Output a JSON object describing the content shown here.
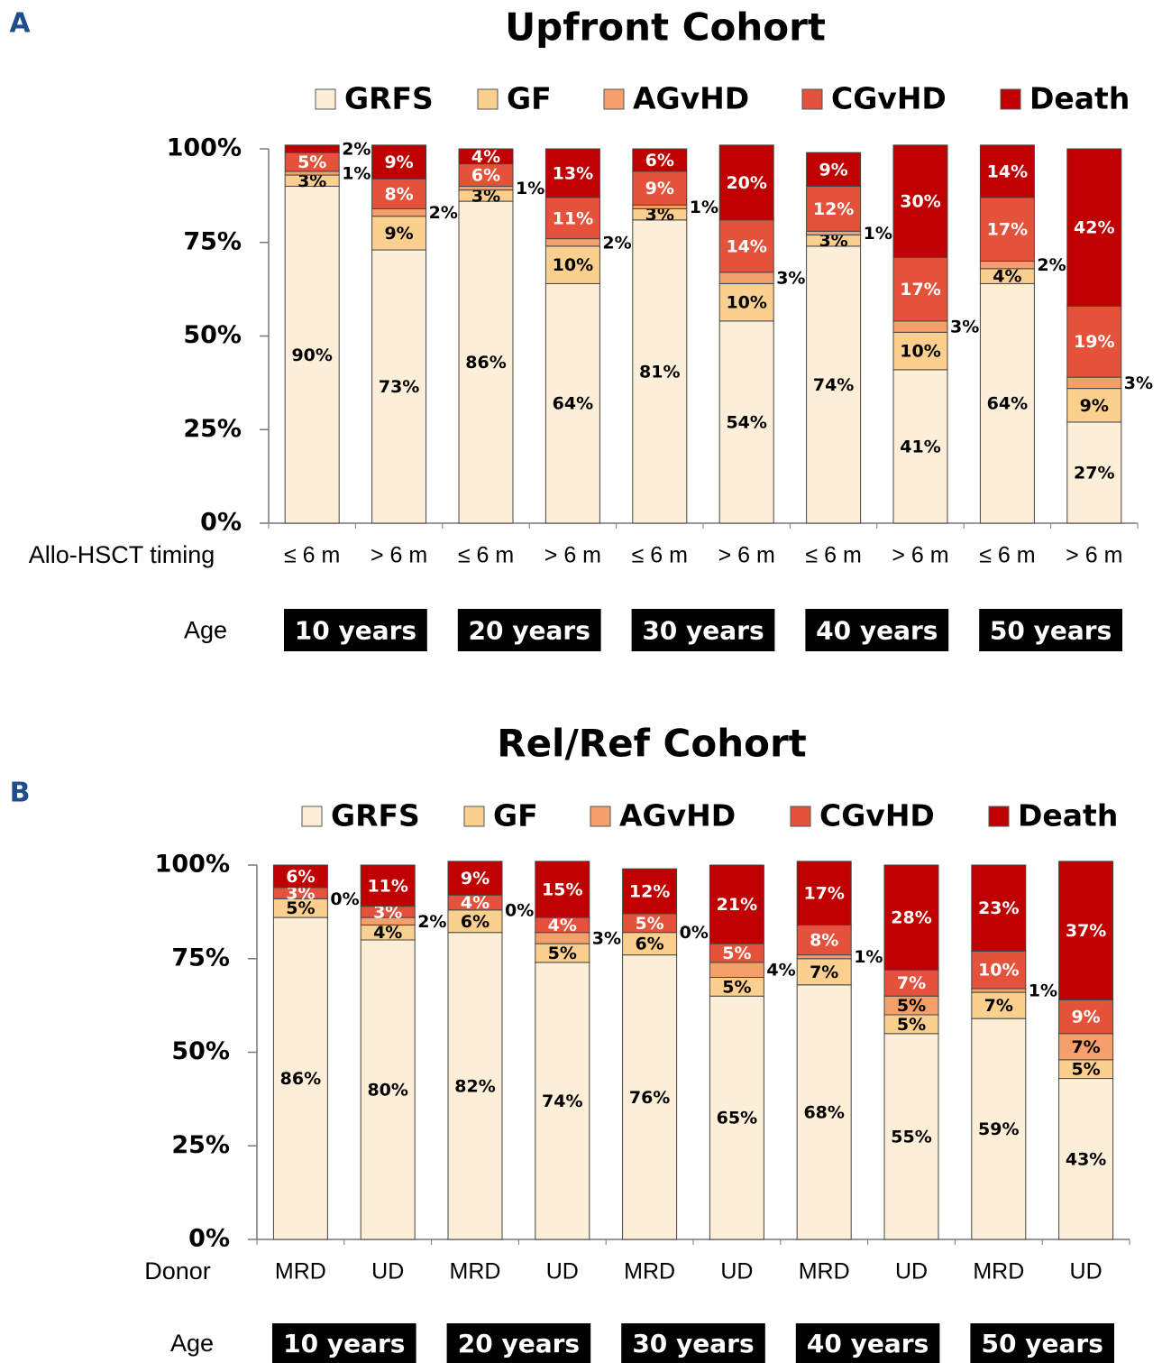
{
  "chart_data": [
    {
      "type": "bar",
      "stacked": true,
      "panel": "A",
      "title": "Upfront Cohort",
      "x_label": "Allo-HSCT timing",
      "categories": [
        "≤ 6 m",
        "> 6 m",
        "≤ 6 m",
        "> 6 m",
        "≤ 6 m",
        "> 6 m",
        "≤ 6 m",
        "> 6 m",
        "≤ 6 m",
        "> 6 m"
      ],
      "groups": {
        "label": "Age",
        "names": [
          "10 years",
          "20 years",
          "30 years",
          "40 years",
          "50 years"
        ]
      },
      "ylim": [
        0,
        100
      ],
      "yticks": [
        {
          "value": 0,
          "label": "0%"
        },
        {
          "value": 25,
          "label": "25%"
        },
        {
          "value": 50,
          "label": "50%"
        },
        {
          "value": 75,
          "label": "75%"
        },
        {
          "value": 100,
          "label": "100%"
        }
      ],
      "series": [
        {
          "name": "GRFS",
          "color": "#fdeed8",
          "values": [
            90,
            73,
            86,
            64,
            81,
            54,
            74,
            41,
            64,
            27
          ],
          "value_labels": [
            "90%",
            "73%",
            "86%",
            "64%",
            "81%",
            "54%",
            "74%",
            "41%",
            "64%",
            "27%"
          ]
        },
        {
          "name": "GF",
          "color": "#fbd08f",
          "values": [
            3,
            9,
            3,
            10,
            3,
            10,
            3,
            10,
            4,
            9
          ],
          "value_labels": [
            "3%",
            "9%",
            "3%",
            "10%",
            "3%",
            "10%",
            "3%",
            "10%",
            "4%",
            "9%"
          ]
        },
        {
          "name": "AGvHD",
          "color": "#f5a06a",
          "values": [
            1,
            2,
            1,
            2,
            1,
            3,
            1,
            3,
            2,
            3
          ],
          "value_labels": [
            "1%",
            "2%",
            "1%",
            "2%",
            "1%",
            "3%",
            "1%",
            "3%",
            "2%",
            "3%"
          ]
        },
        {
          "name": "CGvHD",
          "color": "#e4523b",
          "values": [
            5,
            8,
            6,
            11,
            9,
            14,
            12,
            17,
            17,
            19
          ],
          "value_labels": [
            "5%",
            "8%",
            "6%",
            "11%",
            "9%",
            "14%",
            "12%",
            "17%",
            "17%",
            "19%"
          ]
        },
        {
          "name": "Death",
          "color": "#c00000",
          "values": [
            2,
            9,
            4,
            13,
            6,
            20,
            9,
            30,
            14,
            42
          ],
          "value_labels": [
            "2%",
            "9%",
            "4%",
            "13%",
            "6%",
            "20%",
            "9%",
            "30%",
            "14%",
            "42%"
          ]
        }
      ]
    },
    {
      "type": "bar",
      "stacked": true,
      "panel": "B",
      "title": "Rel/Ref Cohort",
      "x_label": "Donor",
      "categories": [
        "MRD",
        "UD",
        "MRD",
        "UD",
        "MRD",
        "UD",
        "MRD",
        "UD",
        "MRD",
        "UD"
      ],
      "groups": {
        "label": "Age",
        "names": [
          "10 years",
          "20 years",
          "30 years",
          "40 years",
          "50 years"
        ]
      },
      "ylim": [
        0,
        100
      ],
      "yticks": [
        {
          "value": 0,
          "label": "0%"
        },
        {
          "value": 25,
          "label": "25%"
        },
        {
          "value": 50,
          "label": "50%"
        },
        {
          "value": 75,
          "label": "75%"
        },
        {
          "value": 100,
          "label": "100%"
        }
      ],
      "series": [
        {
          "name": "GRFS",
          "color": "#fdeed8",
          "values": [
            86,
            80,
            82,
            74,
            76,
            65,
            68,
            55,
            59,
            43
          ],
          "value_labels": [
            "86%",
            "80%",
            "82%",
            "74%",
            "76%",
            "65%",
            "68%",
            "55%",
            "59%",
            "43%"
          ]
        },
        {
          "name": "GF",
          "color": "#fbd08f",
          "values": [
            5,
            4,
            6,
            5,
            6,
            5,
            7,
            5,
            7,
            5
          ],
          "value_labels": [
            "5%",
            "4%",
            "6%",
            "5%",
            "6%",
            "5%",
            "7%",
            "5%",
            "7%",
            "5%"
          ]
        },
        {
          "name": "AGvHD",
          "color": "#f5a06a",
          "values": [
            0,
            2,
            0,
            3,
            0,
            4,
            1,
            5,
            1,
            7
          ],
          "value_labels": [
            "0%",
            "2%",
            "0%",
            "3%",
            "0%",
            "4%",
            "1%",
            "5%",
            "1%",
            "7%"
          ]
        },
        {
          "name": "CGvHD",
          "color": "#e4523b",
          "values": [
            3,
            3,
            4,
            4,
            5,
            5,
            8,
            7,
            10,
            9
          ],
          "value_labels": [
            "3%",
            "3%",
            "4%",
            "4%",
            "5%",
            "5%",
            "8%",
            "7%",
            "10%",
            "9%"
          ]
        },
        {
          "name": "Death",
          "color": "#c00000",
          "values": [
            6,
            11,
            9,
            15,
            12,
            21,
            17,
            28,
            23,
            37
          ],
          "value_labels": [
            "6%",
            "11%",
            "9%",
            "15%",
            "12%",
            "21%",
            "17%",
            "28%",
            "23%",
            "37%"
          ]
        }
      ]
    }
  ]
}
